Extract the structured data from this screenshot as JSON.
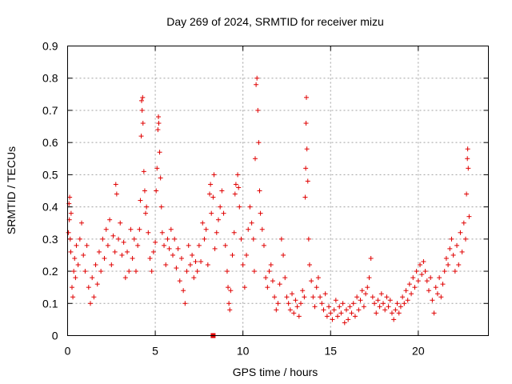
{
  "chart_data": {
    "type": "scatter",
    "title": "Day 269 of 2024, SRMTID for receiver mizu",
    "xlabel": "GPS time / hours",
    "ylabel": "SRMTID / TECUs",
    "xlim": [
      0,
      24
    ],
    "ylim": [
      0,
      0.9
    ],
    "xticks": [
      0,
      5,
      10,
      15,
      20
    ],
    "yticks": [
      0,
      0.1,
      0.2,
      0.3,
      0.4,
      0.5,
      0.6,
      0.7,
      0.8,
      0.9
    ],
    "grid": true,
    "marker": "plus",
    "color": "#e00000",
    "outlier_square": {
      "x": 8.3,
      "y": 0.0
    },
    "series": [
      {
        "name": "SRMTID",
        "points": [
          [
            0.05,
            0.32
          ],
          [
            0.08,
            0.41
          ],
          [
            0.1,
            0.36
          ],
          [
            0.12,
            0.43
          ],
          [
            0.15,
            0.3
          ],
          [
            0.18,
            0.26
          ],
          [
            0.2,
            0.38
          ],
          [
            0.25,
            0.15
          ],
          [
            0.3,
            0.12
          ],
          [
            0.35,
            0.2
          ],
          [
            0.4,
            0.24
          ],
          [
            0.45,
            0.18
          ],
          [
            0.5,
            0.28
          ],
          [
            0.6,
            0.22
          ],
          [
            0.7,
            0.3
          ],
          [
            0.8,
            0.35
          ],
          [
            0.9,
            0.25
          ],
          [
            1.0,
            0.2
          ],
          [
            1.1,
            0.28
          ],
          [
            1.2,
            0.15
          ],
          [
            1.3,
            0.1
          ],
          [
            1.4,
            0.18
          ],
          [
            1.5,
            0.12
          ],
          [
            1.6,
            0.22
          ],
          [
            1.7,
            0.16
          ],
          [
            1.8,
            0.26
          ],
          [
            1.9,
            0.2
          ],
          [
            2.0,
            0.3
          ],
          [
            2.1,
            0.24
          ],
          [
            2.2,
            0.33
          ],
          [
            2.3,
            0.28
          ],
          [
            2.4,
            0.36
          ],
          [
            2.5,
            0.22
          ],
          [
            2.6,
            0.31
          ],
          [
            2.7,
            0.26
          ],
          [
            2.75,
            0.47
          ],
          [
            2.8,
            0.44
          ],
          [
            2.9,
            0.3
          ],
          [
            3.0,
            0.35
          ],
          [
            3.1,
            0.25
          ],
          [
            3.2,
            0.29
          ],
          [
            3.3,
            0.18
          ],
          [
            3.4,
            0.26
          ],
          [
            3.5,
            0.2
          ],
          [
            3.6,
            0.33
          ],
          [
            3.7,
            0.24
          ],
          [
            3.8,
            0.3
          ],
          [
            3.9,
            0.2
          ],
          [
            4.0,
            0.28
          ],
          [
            4.1,
            0.33
          ],
          [
            4.15,
            0.42
          ],
          [
            4.2,
            0.62
          ],
          [
            4.22,
            0.73
          ],
          [
            4.25,
            0.7
          ],
          [
            4.28,
            0.74
          ],
          [
            4.3,
            0.66
          ],
          [
            4.35,
            0.51
          ],
          [
            4.4,
            0.45
          ],
          [
            4.45,
            0.38
          ],
          [
            4.5,
            0.4
          ],
          [
            4.6,
            0.32
          ],
          [
            4.7,
            0.24
          ],
          [
            4.8,
            0.2
          ],
          [
            4.9,
            0.26
          ],
          [
            5.0,
            0.29
          ],
          [
            5.05,
            0.45
          ],
          [
            5.1,
            0.52
          ],
          [
            5.15,
            0.64
          ],
          [
            5.18,
            0.68
          ],
          [
            5.2,
            0.66
          ],
          [
            5.25,
            0.57
          ],
          [
            5.3,
            0.49
          ],
          [
            5.35,
            0.4
          ],
          [
            5.4,
            0.32
          ],
          [
            5.5,
            0.28
          ],
          [
            5.6,
            0.22
          ],
          [
            5.7,
            0.3
          ],
          [
            5.8,
            0.27
          ],
          [
            5.9,
            0.33
          ],
          [
            6.0,
            0.25
          ],
          [
            6.1,
            0.3
          ],
          [
            6.2,
            0.21
          ],
          [
            6.3,
            0.27
          ],
          [
            6.4,
            0.17
          ],
          [
            6.5,
            0.24
          ],
          [
            6.6,
            0.14
          ],
          [
            6.7,
            0.1
          ],
          [
            6.8,
            0.2
          ],
          [
            6.9,
            0.28
          ],
          [
            7.0,
            0.22
          ],
          [
            7.1,
            0.25
          ],
          [
            7.2,
            0.18
          ],
          [
            7.3,
            0.23
          ],
          [
            7.4,
            0.2
          ],
          [
            7.5,
            0.28
          ],
          [
            7.6,
            0.23
          ],
          [
            7.7,
            0.35
          ],
          [
            7.8,
            0.3
          ],
          [
            7.9,
            0.33
          ],
          [
            8.0,
            0.22
          ],
          [
            8.1,
            0.44
          ],
          [
            8.15,
            0.47
          ],
          [
            8.2,
            0.38
          ],
          [
            8.3,
            0.43
          ],
          [
            8.35,
            0.5
          ],
          [
            8.4,
            0.27
          ],
          [
            8.5,
            0.32
          ],
          [
            8.6,
            0.36
          ],
          [
            8.7,
            0.4
          ],
          [
            8.8,
            0.45
          ],
          [
            8.9,
            0.38
          ],
          [
            9.0,
            0.28
          ],
          [
            9.1,
            0.2
          ],
          [
            9.15,
            0.15
          ],
          [
            9.2,
            0.1
          ],
          [
            9.25,
            0.08
          ],
          [
            9.3,
            0.14
          ],
          [
            9.4,
            0.25
          ],
          [
            9.5,
            0.32
          ],
          [
            9.55,
            0.44
          ],
          [
            9.6,
            0.47
          ],
          [
            9.7,
            0.5
          ],
          [
            9.75,
            0.46
          ],
          [
            9.8,
            0.4
          ],
          [
            9.9,
            0.3
          ],
          [
            10.0,
            0.22
          ],
          [
            10.1,
            0.15
          ],
          [
            10.2,
            0.25
          ],
          [
            10.3,
            0.33
          ],
          [
            10.4,
            0.4
          ],
          [
            10.5,
            0.35
          ],
          [
            10.6,
            0.3
          ],
          [
            10.65,
            0.2
          ],
          [
            10.7,
            0.55
          ],
          [
            10.75,
            0.78
          ],
          [
            10.8,
            0.8
          ],
          [
            10.85,
            0.7
          ],
          [
            10.9,
            0.6
          ],
          [
            10.95,
            0.45
          ],
          [
            11.0,
            0.38
          ],
          [
            11.1,
            0.33
          ],
          [
            11.2,
            0.28
          ],
          [
            11.3,
            0.18
          ],
          [
            11.4,
            0.15
          ],
          [
            11.5,
            0.2
          ],
          [
            11.6,
            0.22
          ],
          [
            11.7,
            0.17
          ],
          [
            11.8,
            0.12
          ],
          [
            11.9,
            0.08
          ],
          [
            12.0,
            0.1
          ],
          [
            12.1,
            0.16
          ],
          [
            12.2,
            0.3
          ],
          [
            12.3,
            0.25
          ],
          [
            12.4,
            0.18
          ],
          [
            12.5,
            0.12
          ],
          [
            12.6,
            0.1
          ],
          [
            12.7,
            0.08
          ],
          [
            12.8,
            0.13
          ],
          [
            12.9,
            0.07
          ],
          [
            13.0,
            0.11
          ],
          [
            13.1,
            0.09
          ],
          [
            13.2,
            0.06
          ],
          [
            13.3,
            0.1
          ],
          [
            13.4,
            0.14
          ],
          [
            13.5,
            0.12
          ],
          [
            13.55,
            0.43
          ],
          [
            13.58,
            0.52
          ],
          [
            13.6,
            0.66
          ],
          [
            13.62,
            0.74
          ],
          [
            13.65,
            0.58
          ],
          [
            13.7,
            0.48
          ],
          [
            13.75,
            0.3
          ],
          [
            13.8,
            0.22
          ],
          [
            13.9,
            0.17
          ],
          [
            14.0,
            0.12
          ],
          [
            14.1,
            0.09
          ],
          [
            14.2,
            0.15
          ],
          [
            14.3,
            0.18
          ],
          [
            14.4,
            0.12
          ],
          [
            14.5,
            0.1
          ],
          [
            14.6,
            0.08
          ],
          [
            14.7,
            0.13
          ],
          [
            14.8,
            0.06
          ],
          [
            14.9,
            0.09
          ],
          [
            15.0,
            0.07
          ],
          [
            15.1,
            0.05
          ],
          [
            15.2,
            0.08
          ],
          [
            15.3,
            0.11
          ],
          [
            15.4,
            0.06
          ],
          [
            15.5,
            0.09
          ],
          [
            15.6,
            0.07
          ],
          [
            15.7,
            0.1
          ],
          [
            15.8,
            0.04
          ],
          [
            15.9,
            0.08
          ],
          [
            16.0,
            0.05
          ],
          [
            16.1,
            0.09
          ],
          [
            16.2,
            0.07
          ],
          [
            16.3,
            0.1
          ],
          [
            16.4,
            0.06
          ],
          [
            16.5,
            0.12
          ],
          [
            16.6,
            0.08
          ],
          [
            16.7,
            0.11
          ],
          [
            16.8,
            0.14
          ],
          [
            16.9,
            0.09
          ],
          [
            17.0,
            0.13
          ],
          [
            17.1,
            0.15
          ],
          [
            17.2,
            0.18
          ],
          [
            17.3,
            0.24
          ],
          [
            17.4,
            0.12
          ],
          [
            17.5,
            0.1
          ],
          [
            17.6,
            0.07
          ],
          [
            17.7,
            0.11
          ],
          [
            17.8,
            0.09
          ],
          [
            17.9,
            0.13
          ],
          [
            18.0,
            0.1
          ],
          [
            18.1,
            0.08
          ],
          [
            18.2,
            0.12
          ],
          [
            18.3,
            0.09
          ],
          [
            18.4,
            0.11
          ],
          [
            18.5,
            0.07
          ],
          [
            18.6,
            0.05
          ],
          [
            18.7,
            0.08
          ],
          [
            18.8,
            0.1
          ],
          [
            18.9,
            0.07
          ],
          [
            19.0,
            0.09
          ],
          [
            19.1,
            0.12
          ],
          [
            19.2,
            0.1
          ],
          [
            19.3,
            0.14
          ],
          [
            19.4,
            0.11
          ],
          [
            19.5,
            0.16
          ],
          [
            19.6,
            0.13
          ],
          [
            19.7,
            0.18
          ],
          [
            19.8,
            0.15
          ],
          [
            19.9,
            0.2
          ],
          [
            20.0,
            0.17
          ],
          [
            20.1,
            0.22
          ],
          [
            20.2,
            0.19
          ],
          [
            20.3,
            0.23
          ],
          [
            20.4,
            0.2
          ],
          [
            20.5,
            0.17
          ],
          [
            20.6,
            0.14
          ],
          [
            20.7,
            0.18
          ],
          [
            20.8,
            0.11
          ],
          [
            20.9,
            0.07
          ],
          [
            21.0,
            0.15
          ],
          [
            21.1,
            0.13
          ],
          [
            21.2,
            0.18
          ],
          [
            21.3,
            0.12
          ],
          [
            21.4,
            0.16
          ],
          [
            21.5,
            0.2
          ],
          [
            21.6,
            0.24
          ],
          [
            21.7,
            0.22
          ],
          [
            21.8,
            0.27
          ],
          [
            21.9,
            0.3
          ],
          [
            22.0,
            0.25
          ],
          [
            22.1,
            0.2
          ],
          [
            22.2,
            0.28
          ],
          [
            22.3,
            0.22
          ],
          [
            22.4,
            0.32
          ],
          [
            22.5,
            0.26
          ],
          [
            22.6,
            0.35
          ],
          [
            22.7,
            0.3
          ],
          [
            22.75,
            0.44
          ],
          [
            22.8,
            0.55
          ],
          [
            22.82,
            0.58
          ],
          [
            22.85,
            0.52
          ],
          [
            22.9,
            0.37
          ]
        ]
      }
    ]
  }
}
